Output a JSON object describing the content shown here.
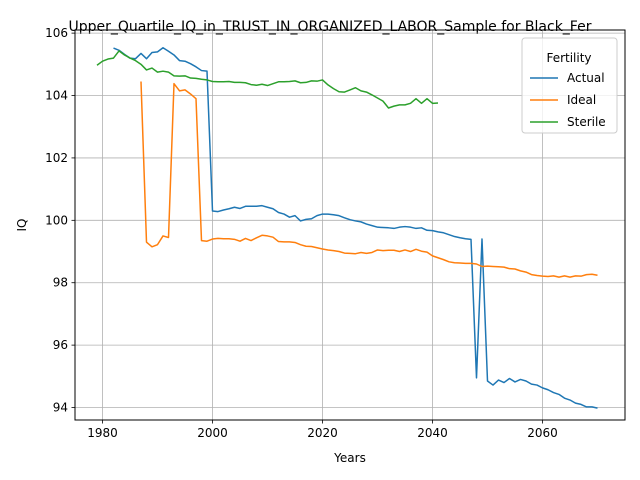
{
  "chart_data": {
    "type": "line",
    "title": "Upper_Quartile_IQ_in_TRUST_IN_ORGANIZED_LABOR_Sample for Black_Fer",
    "xlabel": "Years",
    "ylabel": "IQ",
    "xlim": [
      1975,
      2075
    ],
    "ylim": [
      93.6,
      106.1
    ],
    "xticks": [
      1980,
      2000,
      2020,
      2040,
      2060
    ],
    "yticks": [
      94,
      96,
      98,
      100,
      102,
      104,
      106
    ],
    "grid": true,
    "legend": {
      "title": "Fertility",
      "placement": "top-right"
    },
    "series": [
      {
        "name": "Actual",
        "color": "#1f77b4",
        "x": [
          1982,
          1983,
          1984,
          1985,
          1986,
          1987,
          1988,
          1989,
          1990,
          1991,
          1992,
          1993,
          1994,
          1995,
          1996,
          1997,
          1998,
          1999,
          2000,
          2001,
          2002,
          2003,
          2004,
          2005,
          2006,
          2007,
          2008,
          2009,
          2010,
          2011,
          2012,
          2013,
          2014,
          2015,
          2016,
          2017,
          2018,
          2019,
          2020,
          2021,
          2022,
          2023,
          2024,
          2025,
          2026,
          2027,
          2028,
          2029,
          2030,
          2031,
          2032,
          2033,
          2034,
          2035,
          2036,
          2037,
          2038,
          2039,
          2040,
          2041,
          2042,
          2043,
          2044,
          2045,
          2046,
          2047,
          2048,
          2049,
          2050,
          2051,
          2052,
          2053,
          2054,
          2055,
          2056,
          2057,
          2058,
          2059,
          2060,
          2061,
          2062,
          2063,
          2064,
          2065,
          2066,
          2067,
          2068,
          2069,
          2070
        ],
        "values": [
          105.52,
          105.45,
          105.32,
          105.2,
          105.18,
          105.35,
          105.18,
          105.38,
          105.4,
          105.53,
          105.42,
          105.3,
          105.12,
          105.1,
          105.02,
          104.92,
          104.8,
          104.78,
          100.3,
          100.28,
          100.33,
          100.37,
          100.42,
          100.38,
          100.45,
          100.45,
          100.45,
          100.47,
          100.42,
          100.37,
          100.25,
          100.2,
          100.1,
          100.15,
          99.98,
          100.03,
          100.05,
          100.15,
          100.2,
          100.2,
          100.18,
          100.15,
          100.08,
          100.02,
          99.98,
          99.95,
          99.88,
          99.83,
          99.78,
          99.77,
          99.76,
          99.74,
          99.78,
          99.8,
          99.78,
          99.74,
          99.76,
          99.68,
          99.67,
          99.63,
          99.6,
          99.54,
          99.48,
          99.44,
          99.41,
          99.39,
          94.95,
          99.4,
          94.85,
          94.72,
          94.88,
          94.8,
          94.93,
          94.82,
          94.9,
          94.85,
          94.75,
          94.72,
          94.63,
          94.57,
          94.48,
          94.42,
          94.3,
          94.24,
          94.14,
          94.1,
          94.02,
          94.02,
          93.98
        ]
      },
      {
        "name": "Ideal",
        "color": "#ff7f0e",
        "x": [
          1987,
          1988,
          1989,
          1990,
          1991,
          1992,
          1993,
          1994,
          1995,
          1996,
          1997,
          1998,
          1999,
          2000,
          2001,
          2002,
          2003,
          2004,
          2005,
          2006,
          2007,
          2008,
          2009,
          2010,
          2011,
          2012,
          2013,
          2014,
          2015,
          2016,
          2017,
          2018,
          2019,
          2020,
          2021,
          2022,
          2023,
          2024,
          2025,
          2026,
          2027,
          2028,
          2029,
          2030,
          2031,
          2032,
          2033,
          2034,
          2035,
          2036,
          2037,
          2038,
          2039,
          2040,
          2041,
          2042,
          2043,
          2044,
          2045,
          2046,
          2047,
          2048,
          2049,
          2050,
          2051,
          2052,
          2053,
          2054,
          2055,
          2056,
          2057,
          2058,
          2059,
          2060,
          2061,
          2062,
          2063,
          2064,
          2065,
          2066,
          2067,
          2068,
          2069,
          2070
        ],
        "values": [
          104.45,
          99.3,
          99.15,
          99.22,
          99.5,
          99.45,
          104.38,
          104.15,
          104.18,
          104.05,
          103.9,
          99.35,
          99.33,
          99.4,
          99.42,
          99.41,
          99.41,
          99.39,
          99.33,
          99.42,
          99.35,
          99.44,
          99.52,
          99.5,
          99.46,
          99.32,
          99.31,
          99.31,
          99.29,
          99.22,
          99.17,
          99.16,
          99.12,
          99.08,
          99.05,
          99.03,
          99.0,
          98.95,
          98.94,
          98.93,
          98.97,
          98.94,
          98.97,
          99.05,
          99.03,
          99.04,
          99.04,
          99.0,
          99.05,
          99.0,
          99.07,
          99.01,
          98.98,
          98.86,
          98.8,
          98.74,
          98.67,
          98.64,
          98.63,
          98.62,
          98.62,
          98.6,
          98.52,
          98.53,
          98.52,
          98.51,
          98.5,
          98.45,
          98.44,
          98.38,
          98.34,
          98.26,
          98.23,
          98.21,
          98.2,
          98.22,
          98.18,
          98.22,
          98.18,
          98.22,
          98.21,
          98.26,
          98.27,
          98.24
        ]
      },
      {
        "name": "Sterile",
        "color": "#2ca02c",
        "x": [
          1979,
          1980,
          1981,
          1982,
          1983,
          1984,
          1985,
          1986,
          1987,
          1988,
          1989,
          1990,
          1991,
          1992,
          1993,
          1994,
          1995,
          1996,
          1997,
          1998,
          1999,
          2000,
          2001,
          2002,
          2003,
          2004,
          2005,
          2006,
          2007,
          2008,
          2009,
          2010,
          2011,
          2012,
          2013,
          2014,
          2015,
          2016,
          2017,
          2018,
          2019,
          2020,
          2021,
          2022,
          2023,
          2024,
          2025,
          2026,
          2027,
          2028,
          2029,
          2030,
          2031,
          2032,
          2033,
          2034,
          2035,
          2036,
          2037,
          2038,
          2039,
          2040,
          2041
        ],
        "values": [
          104.97,
          105.1,
          105.17,
          105.2,
          105.43,
          105.3,
          105.2,
          105.12,
          105.0,
          104.82,
          104.88,
          104.75,
          104.78,
          104.75,
          104.63,
          104.62,
          104.63,
          104.56,
          104.55,
          104.52,
          104.5,
          104.45,
          104.44,
          104.44,
          104.45,
          104.42,
          104.42,
          104.41,
          104.35,
          104.33,
          104.36,
          104.32,
          104.38,
          104.44,
          104.44,
          104.45,
          104.47,
          104.41,
          104.42,
          104.47,
          104.46,
          104.5,
          104.34,
          104.22,
          104.12,
          104.11,
          104.18,
          104.25,
          104.15,
          104.11,
          104.02,
          103.92,
          103.82,
          103.6,
          103.66,
          103.7,
          103.7,
          103.75,
          103.9,
          103.75,
          103.9,
          103.75,
          103.76
        ]
      }
    ]
  }
}
